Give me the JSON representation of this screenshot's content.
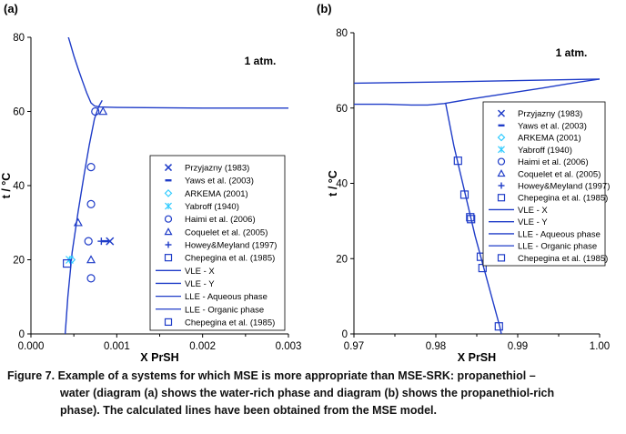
{
  "chart_data": [
    {
      "panel": "(a)",
      "type": "scatter",
      "annotation": "1 atm.",
      "xlabel": "X PrSH",
      "ylabel": "t / °C",
      "xlim": [
        0,
        0.003
      ],
      "ylim": [
        0,
        80
      ],
      "xticks": [
        "0.000",
        "0.001",
        "0.002",
        "0.003"
      ],
      "yticks": [
        "0",
        "20",
        "40",
        "60",
        "80"
      ],
      "xminor": [
        0.0005,
        0.0015,
        0.0025
      ],
      "grid": false,
      "legend_position": "right",
      "legend": [
        {
          "label": "Przyjazny (1983)",
          "marker": "x",
          "color": "#1f3cc8"
        },
        {
          "label": "Yaws et al. (2003)",
          "marker": "dash",
          "color": "#1f3cc8"
        },
        {
          "label": "ARKEMA (2001)",
          "marker": "diamond",
          "color": "#33ccff"
        },
        {
          "label": "Yabroff (1940)",
          "marker": "asterisk",
          "color": "#33ccff"
        },
        {
          "label": "Haimi et al. (2006)",
          "marker": "circle",
          "color": "#1f3cc8"
        },
        {
          "label": "Coquelet et al. (2005)",
          "marker": "triangle",
          "color": "#1f3cc8"
        },
        {
          "label": "Howey&Meyland (1997)",
          "marker": "plus",
          "color": "#1f3cc8"
        },
        {
          "label": "Chepegina et al. (1985)",
          "marker": "square",
          "color": "#1f3cc8"
        },
        {
          "label": "VLE - X",
          "marker": "line",
          "color": "#1f3cc8"
        },
        {
          "label": "VLE - Y",
          "marker": "line",
          "color": "#1f3cc8"
        },
        {
          "label": "LLE - Aqueous phase",
          "marker": "line",
          "color": "#1f3cc8"
        },
        {
          "label": "LLE - Organic phase",
          "marker": "line",
          "color": "#1f3cc8"
        },
        {
          "label": "Chepegina et al. (1985)",
          "marker": "square",
          "color": "#1f3cc8"
        }
      ],
      "lines": [
        {
          "name": "VLE",
          "color": "#1f3cc8",
          "points": [
            [
              0.00041,
              82
            ],
            [
              0.00045,
              79
            ],
            [
              0.0005,
              75
            ],
            [
              0.00055,
              71.5
            ],
            [
              0.0006,
              68.2
            ],
            [
              0.00065,
              65
            ],
            [
              0.0007,
              62.3
            ],
            [
              0.00074,
              61.5
            ],
            [
              0.0008,
              61.2
            ],
            [
              0.001,
              61.1
            ],
            [
              0.0015,
              61.0
            ],
            [
              0.002,
              60.9
            ],
            [
              0.0025,
              60.9
            ],
            [
              0.003,
              60.9
            ]
          ]
        },
        {
          "name": "LLE",
          "color": "#1f3cc8",
          "points": [
            [
              0.00039,
              -3
            ],
            [
              0.00043,
              10
            ],
            [
              0.00048,
              22
            ],
            [
              0.00055,
              33
            ],
            [
              0.00062,
              43
            ],
            [
              0.00068,
              51
            ],
            [
              0.00074,
              58
            ],
            [
              0.00079,
              61.3
            ],
            [
              0.00083,
              63
            ]
          ]
        }
      ],
      "points": [
        {
          "series": "Przyjazny (1983)",
          "marker": "x",
          "color": "#1f3cc8",
          "x": 0.00092,
          "y": 25
        },
        {
          "series": "Yaws et al. (2003)",
          "marker": "dash",
          "color": "#1f3cc8",
          "x": 0.00087,
          "y": 25
        },
        {
          "series": "ARKEMA (2001)",
          "marker": "diamond",
          "color": "#33ccff",
          "x": 0.00047,
          "y": 20
        },
        {
          "series": "Yabroff (1940)",
          "marker": "asterisk",
          "color": "#33ccff",
          "x": 0.00045,
          "y": 20
        },
        {
          "series": "Haimi et al. (2006)",
          "marker": "circle",
          "color": "#1f3cc8",
          "x": 0.00075,
          "y": 60
        },
        {
          "series": "Haimi et al. (2006)",
          "marker": "circle",
          "color": "#1f3cc8",
          "x": 0.0007,
          "y": 45
        },
        {
          "series": "Haimi et al. (2006)",
          "marker": "circle",
          "color": "#1f3cc8",
          "x": 0.0007,
          "y": 35
        },
        {
          "series": "Haimi et al. (2006)",
          "marker": "circle",
          "color": "#1f3cc8",
          "x": 0.00067,
          "y": 25
        },
        {
          "series": "Haimi et al. (2006)",
          "marker": "circle",
          "color": "#1f3cc8",
          "x": 0.0007,
          "y": 15
        },
        {
          "series": "Coquelet et al. (2005)",
          "marker": "triangle",
          "color": "#1f3cc8",
          "x": 0.00084,
          "y": 60
        },
        {
          "series": "Coquelet et al. (2005)",
          "marker": "triangle",
          "color": "#1f3cc8",
          "x": 0.00055,
          "y": 30
        },
        {
          "series": "Coquelet et al. (2005)",
          "marker": "triangle",
          "color": "#1f3cc8",
          "x": 0.0007,
          "y": 20
        },
        {
          "series": "Howey&Meyland (1997)",
          "marker": "plus",
          "color": "#1f3cc8",
          "x": 0.00082,
          "y": 25
        },
        {
          "series": "Chepegina et al. (1985)",
          "marker": "square",
          "color": "#1f3cc8",
          "x": 0.00042,
          "y": 19
        }
      ]
    },
    {
      "panel": "(b)",
      "type": "scatter",
      "annotation": "1 atm.",
      "xlabel": "X PrSH",
      "ylabel": "t / °C",
      "xlim": [
        0.97,
        1.0
      ],
      "ylim": [
        0,
        80
      ],
      "xticks": [
        "0.97",
        "0.98",
        "0.99",
        "1.00"
      ],
      "yticks": [
        "0",
        "20",
        "40",
        "60",
        "80"
      ],
      "xminor": [
        0.975,
        0.985,
        0.995
      ],
      "grid": false,
      "legend_position": "right",
      "legend": [
        {
          "label": "Przyjazny (1983)",
          "marker": "x",
          "color": "#1f3cc8"
        },
        {
          "label": "Yaws et al. (2003)",
          "marker": "dash",
          "color": "#1f3cc8"
        },
        {
          "label": "ARKEMA (2001)",
          "marker": "diamond",
          "color": "#33ccff"
        },
        {
          "label": "Yabroff (1940)",
          "marker": "asterisk",
          "color": "#33ccff"
        },
        {
          "label": "Haimi et al. (2006)",
          "marker": "circle",
          "color": "#1f3cc8"
        },
        {
          "label": "Coquelet et al. (2005)",
          "marker": "triangle",
          "color": "#1f3cc8"
        },
        {
          "label": "Howey&Meyland (1997)",
          "marker": "plus",
          "color": "#1f3cc8"
        },
        {
          "label": "Chepegina et al. (1985)",
          "marker": "square",
          "color": "#1f3cc8"
        },
        {
          "label": "VLE - X",
          "marker": "line",
          "color": "#1f3cc8"
        },
        {
          "label": "VLE - Y",
          "marker": "line",
          "color": "#1f3cc8"
        },
        {
          "label": "LLE - Aqueous phase",
          "marker": "line",
          "color": "#1f3cc8"
        },
        {
          "label": "LLE - Organic phase",
          "marker": "line",
          "color": "#1f3cc8"
        },
        {
          "label": "Chepegina et al. (1985)",
          "marker": "square",
          "color": "#1f3cc8"
        }
      ],
      "lines": [
        {
          "name": "VLE - Y",
          "color": "#1f3cc8",
          "points": [
            [
              0.97,
              66.6
            ],
            [
              0.98,
              66.9
            ],
            [
              0.99,
              67.3
            ],
            [
              1.0,
              67.7
            ]
          ]
        },
        {
          "name": "VLE - X",
          "color": "#1f3cc8",
          "points": [
            [
              0.97,
              61
            ],
            [
              0.974,
              61
            ],
            [
              0.977,
              60.8
            ],
            [
              0.979,
              60.8
            ],
            [
              0.981,
              61.2
            ],
            [
              0.984,
              62.3
            ],
            [
              0.987,
              63.3
            ],
            [
              0.99,
              64.3
            ],
            [
              0.993,
              65.3
            ],
            [
              0.996,
              66.4
            ],
            [
              1.0,
              67.7
            ]
          ]
        },
        {
          "name": "LLE - Organic phase",
          "color": "#1f3cc8",
          "points": [
            [
              0.9812,
              61.2
            ],
            [
              0.9822,
              50
            ],
            [
              0.9835,
              38
            ],
            [
              0.9848,
              26
            ],
            [
              0.9863,
              14
            ],
            [
              0.9878,
              2
            ],
            [
              0.988,
              0
            ]
          ]
        }
      ],
      "points": [
        {
          "series": "Chepegina et al. (1985)",
          "marker": "square",
          "color": "#1f3cc8",
          "x": 0.9827,
          "y": 46
        },
        {
          "series": "Chepegina et al. (1985)",
          "marker": "square",
          "color": "#1f3cc8",
          "x": 0.9835,
          "y": 37
        },
        {
          "series": "Chepegina et al. (1985)",
          "marker": "square",
          "color": "#1f3cc8",
          "x": 0.9842,
          "y": 31
        },
        {
          "series": "Chepegina et al. (1985)",
          "marker": "square",
          "color": "#1f3cc8",
          "x": 0.9843,
          "y": 30.5
        },
        {
          "series": "Chepegina et al. (1985)",
          "marker": "square",
          "color": "#1f3cc8",
          "x": 0.9855,
          "y": 20.5
        },
        {
          "series": "Chepegina et al. (1985)",
          "marker": "square",
          "color": "#1f3cc8",
          "x": 0.9857,
          "y": 17.5
        },
        {
          "series": "Chepegina et al. (1985)",
          "marker": "square",
          "color": "#1f3cc8",
          "x": 0.9877,
          "y": 2
        }
      ]
    }
  ],
  "caption": {
    "lines": [
      "Figure 7. Example of a systems for which MSE is more appropriate than MSE-SRK: propanethiol –",
      "water (diagram (a) shows the water-rich phase and diagram (b) shows the propanethiol-rich",
      "phase). The calculated lines have been obtained from the MSE model."
    ]
  }
}
